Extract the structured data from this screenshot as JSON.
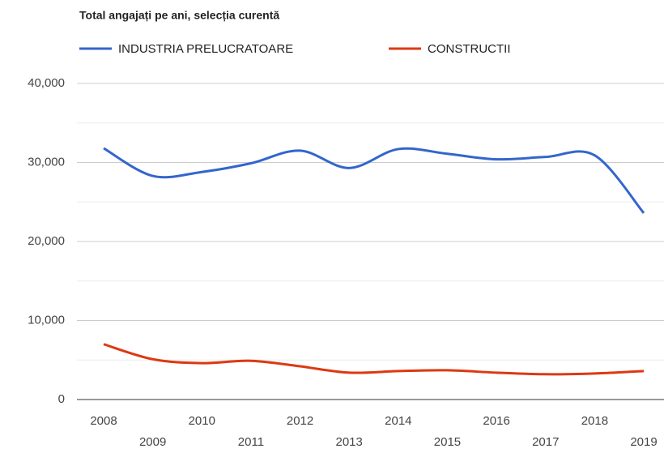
{
  "chart_data": {
    "type": "line",
    "title": "Total angajați pe ani, selecția curentă",
    "categories": [
      "2008",
      "2009",
      "2010",
      "2011",
      "2012",
      "2013",
      "2014",
      "2015",
      "2016",
      "2017",
      "2018",
      "2019"
    ],
    "series": [
      {
        "name": "INDUSTRIA PRELUCRATOARE",
        "color": "#3366cc",
        "values": [
          31800,
          28300,
          28800,
          29900,
          31500,
          29300,
          31700,
          31100,
          30400,
          30700,
          30900,
          23600
        ]
      },
      {
        "name": "CONSTRUCTII",
        "color": "#dc3912",
        "values": [
          7000,
          5100,
          4600,
          4900,
          4200,
          3400,
          3600,
          3700,
          3400,
          3200,
          3300,
          3600
        ]
      }
    ],
    "ylim": [
      0,
      40000
    ],
    "yticks": [
      0,
      {
        "value": 10000,
        "label": "10,000"
      },
      {
        "value": 20000,
        "label": "20,000"
      },
      {
        "value": 30000,
        "label": "30,000"
      },
      {
        "value": 40000,
        "label": "40,000"
      }
    ],
    "minor_yticks": [
      5000,
      15000,
      25000,
      35000
    ],
    "grid": true,
    "legend": "top",
    "smooth": true
  }
}
